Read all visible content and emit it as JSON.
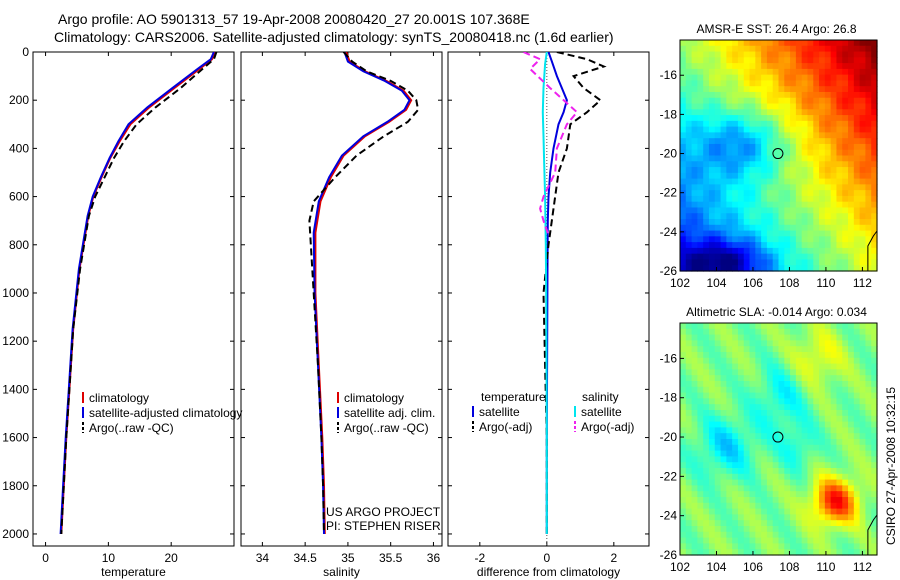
{
  "header": {
    "title_line1": "Argo profile: AO 5901313_57 19-Apr-2008 20080420_27 20.001S 107.368E",
    "title_line2": "Climatology: CARS2006. Satellite-adjusted climatology: synTS_20080418.nc (1.6d earlier)",
    "side_label": "CSIRO 27-Apr-2008 10:32:15"
  },
  "chart_data": [
    {
      "type": "line",
      "xlabel": "temperature",
      "ylim": [
        2050,
        0
      ],
      "xlim": [
        -2,
        30
      ],
      "x_ticks": [
        0,
        10,
        20
      ],
      "y_ticks": [
        0,
        200,
        400,
        600,
        800,
        1000,
        1200,
        1400,
        1600,
        1800,
        2000
      ],
      "legend": {
        "placement": "lower-right",
        "entries": [
          "climatology",
          "satellite-adjusted climatology",
          "Argo(..raw -QC)"
        ]
      },
      "series": [
        {
          "name": "climatology",
          "color": "#dd0000",
          "x": [
            27.0,
            26.5,
            24.5,
            20.5,
            16.5,
            13.5,
            11.8,
            10.3,
            8.9,
            7.6,
            6.8,
            5.4,
            4.4,
            3.8,
            3.3,
            2.9,
            2.5
          ],
          "y": [
            0,
            30,
            70,
            150,
            230,
            300,
            370,
            440,
            520,
            600,
            680,
            900,
            1150,
            1400,
            1600,
            1800,
            2000
          ]
        },
        {
          "name": "satellite-adjusted climatology",
          "color": "#0000dd",
          "x": [
            26.8,
            26.3,
            24.2,
            20.2,
            16.2,
            13.2,
            11.6,
            10.2,
            8.8,
            7.5,
            6.7,
            5.3,
            4.3,
            3.7,
            3.2,
            2.8,
            2.4
          ],
          "y": [
            0,
            30,
            70,
            150,
            230,
            300,
            370,
            440,
            520,
            600,
            680,
            900,
            1150,
            1400,
            1600,
            1800,
            2000
          ]
        },
        {
          "name": "Argo(..raw -QC)",
          "color": "#000000",
          "dash": true,
          "x": [
            27.2,
            26.8,
            25.0,
            21.5,
            17.5,
            14.5,
            12.5,
            10.9,
            9.4,
            7.9,
            6.9,
            5.5,
            4.4,
            3.8,
            3.3,
            2.9,
            2.5
          ],
          "y": [
            0,
            30,
            70,
            150,
            230,
            300,
            370,
            440,
            520,
            600,
            680,
            900,
            1150,
            1400,
            1600,
            1800,
            2000
          ]
        }
      ]
    },
    {
      "type": "line",
      "xlabel": "salinity",
      "ylim": [
        2050,
        0
      ],
      "xlim": [
        33.75,
        36.1
      ],
      "x_ticks": [
        34,
        34.5,
        35,
        35.5,
        36
      ],
      "y_ticks": [
        0,
        200,
        400,
        600,
        800,
        1000,
        1200,
        1400,
        1600,
        1800,
        2000
      ],
      "legend": {
        "placement": "lower-right",
        "entries": [
          "climatology",
          "satellite adj. clim.",
          "Argo(..raw -QC)"
        ]
      },
      "annotations": [
        "US ARGO PROJECT",
        "PI: STEPHEN RISER"
      ],
      "series": [
        {
          "name": "climatology",
          "color": "#dd0000",
          "x": [
            34.98,
            35.02,
            35.2,
            35.45,
            35.65,
            35.74,
            35.68,
            35.48,
            35.2,
            34.95,
            34.8,
            34.68,
            34.62,
            34.62,
            34.66,
            34.7,
            34.72,
            34.73
          ],
          "y": [
            0,
            40,
            80,
            120,
            160,
            200,
            240,
            290,
            350,
            430,
            520,
            620,
            750,
            1000,
            1300,
            1600,
            1800,
            2000
          ]
        },
        {
          "name": "satellite adj. clim.",
          "color": "#0000dd",
          "x": [
            34.96,
            35.0,
            35.18,
            35.43,
            35.63,
            35.72,
            35.66,
            35.46,
            35.18,
            34.93,
            34.78,
            34.66,
            34.6,
            34.61,
            34.65,
            34.69,
            34.71,
            34.72
          ],
          "y": [
            0,
            40,
            80,
            120,
            160,
            200,
            240,
            290,
            350,
            430,
            520,
            620,
            750,
            1000,
            1300,
            1600,
            1800,
            2000
          ]
        },
        {
          "name": "Argo(..raw -QC)",
          "color": "#000000",
          "dash": true,
          "x": [
            34.95,
            35.05,
            35.22,
            35.5,
            35.7,
            35.8,
            35.82,
            35.7,
            35.42,
            35.1,
            34.85,
            34.6,
            34.55,
            34.6,
            34.65,
            34.69,
            34.71,
            34.72
          ],
          "y": [
            0,
            40,
            80,
            120,
            160,
            200,
            240,
            290,
            350,
            430,
            520,
            620,
            700,
            1000,
            1300,
            1600,
            1800,
            2000
          ]
        }
      ]
    },
    {
      "type": "line",
      "xlabel": "difference from climatology",
      "ylim": [
        2050,
        0
      ],
      "xlim": [
        -2.95,
        3.05
      ],
      "x_ticks": [
        -2,
        0,
        2
      ],
      "y_ticks": [
        0,
        200,
        400,
        600,
        800,
        1000,
        1200,
        1400,
        1600,
        1800,
        2000
      ],
      "legend": {
        "placement": "lower-right",
        "column_titles": [
          "temperature",
          "salinity"
        ],
        "entries": [
          "satellite",
          "Argo(-adj)",
          "satellite",
          "Argo(-adj)"
        ]
      },
      "series": [
        {
          "name": "temperature satellite",
          "color": "#0000dd",
          "x": [
            0.05,
            0.15,
            0.3,
            0.45,
            0.6,
            0.5,
            0.35,
            0.2,
            0.1,
            0.05,
            0.03,
            0.02,
            0.01,
            0.0,
            0.0
          ],
          "y": [
            0,
            40,
            100,
            150,
            200,
            250,
            300,
            400,
            500,
            600,
            700,
            900,
            1200,
            1600,
            2000
          ]
        },
        {
          "name": "temperature Argo(-adj)",
          "color": "#000000",
          "dash": true,
          "x": [
            0.3,
            1.2,
            1.7,
            0.8,
            1.1,
            1.6,
            1.2,
            0.7,
            0.6,
            0.35,
            0.2,
            0.05,
            -0.1,
            -0.05,
            0.0,
            0.0
          ],
          "y": [
            0,
            30,
            60,
            100,
            150,
            200,
            250,
            300,
            400,
            500,
            650,
            800,
            1000,
            1300,
            1600,
            2000
          ]
        },
        {
          "name": "salinity satellite",
          "color": "#00e5ee",
          "x": [
            0.0,
            -0.05,
            -0.1,
            -0.12,
            -0.1,
            -0.08,
            -0.05,
            -0.03,
            -0.02,
            -0.01,
            0.0,
            0.0
          ],
          "y": [
            0,
            50,
            150,
            250,
            350,
            450,
            600,
            800,
            1000,
            1300,
            1600,
            2000
          ]
        },
        {
          "name": "salinity Argo(-adj)",
          "color": "#ee22ee",
          "dash": true,
          "x": [
            -0.7,
            -0.2,
            -0.5,
            0.1,
            0.9,
            0.6,
            0.3,
            0.25,
            -0.1,
            -0.2,
            -0.1,
            0.05
          ],
          "y": [
            0,
            30,
            70,
            150,
            250,
            300,
            400,
            500,
            600,
            650,
            700,
            760
          ]
        }
      ]
    },
    {
      "type": "heatmap",
      "title": "AMSR-E SST: 26.4 Argo: 26.8",
      "x_ticks": [
        102,
        104,
        106,
        108,
        110,
        112
      ],
      "y_ticks": [
        -16,
        -18,
        -20,
        -22,
        -24,
        -26
      ],
      "xlim": [
        102,
        112.8
      ],
      "ylim": [
        -26,
        -14.2
      ],
      "marker": [
        107.368,
        -20.001
      ]
    },
    {
      "type": "heatmap",
      "title": "Altimetric SLA: -0.014 Argo: 0.034",
      "x_ticks": [
        102,
        104,
        106,
        108,
        110,
        112
      ],
      "y_ticks": [
        -16,
        -18,
        -20,
        -22,
        -24,
        -26
      ],
      "xlim": [
        102,
        112.8
      ],
      "ylim": [
        -26,
        -14.2
      ],
      "marker": [
        107.368,
        -20.001
      ]
    }
  ]
}
